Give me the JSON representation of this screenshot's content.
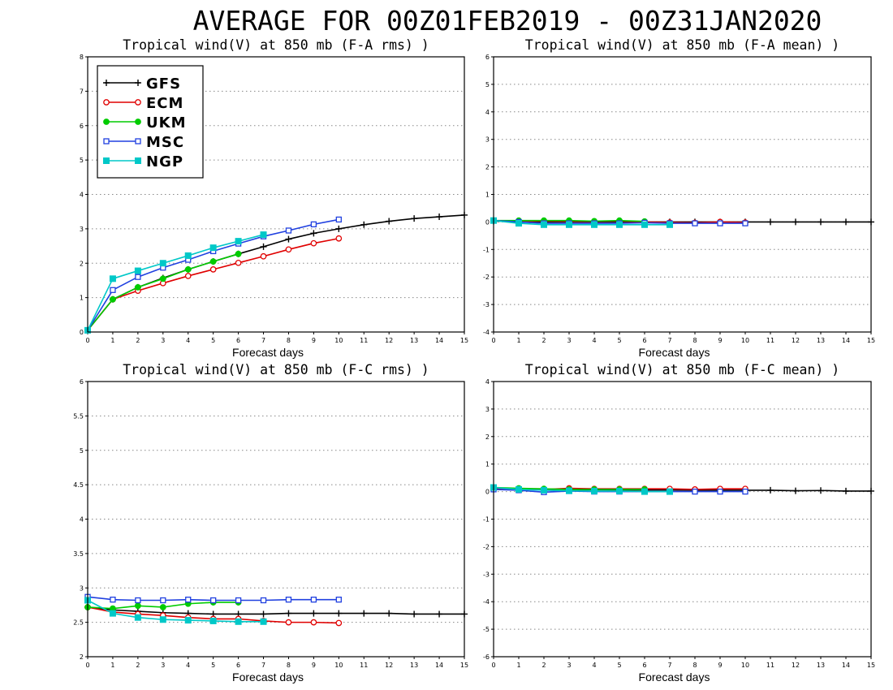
{
  "title": "AVERAGE FOR 00Z01FEB2019 - 00Z31JAN2020",
  "series_style": [
    {
      "name": "GFS",
      "color": "#000000",
      "marker": "plus"
    },
    {
      "name": "ECM",
      "color": "#e00000",
      "marker": "open-circle"
    },
    {
      "name": "UKM",
      "color": "#00cc00",
      "marker": "filled-circle"
    },
    {
      "name": "MSC",
      "color": "#2040e0",
      "marker": "open-square"
    },
    {
      "name": "NGP",
      "color": "#00c8c8",
      "marker": "filled-square"
    }
  ],
  "chart_data": [
    {
      "type": "line",
      "title": "Tropical wind(V) at 850 mb (F-A rms) )",
      "xlabel": "Forecast days",
      "ylabel": "",
      "xlim": [
        0,
        15
      ],
      "ylim": [
        0,
        8
      ],
      "xticks": [
        0,
        1,
        2,
        3,
        4,
        5,
        6,
        7,
        8,
        9,
        10,
        11,
        12,
        13,
        14,
        15
      ],
      "yticks": [
        0,
        1,
        2,
        3,
        4,
        5,
        6,
        7,
        8
      ],
      "grid": "horizontal dotted",
      "legend": "top-left",
      "series": [
        {
          "name": "GFS",
          "x": [
            0,
            1,
            2,
            3,
            4,
            5,
            6,
            7,
            8,
            9,
            10,
            11,
            12,
            13,
            14,
            15
          ],
          "values": [
            0.05,
            0.95,
            1.3,
            1.57,
            1.82,
            2.05,
            2.27,
            2.48,
            2.7,
            2.87,
            3.0,
            3.12,
            3.22,
            3.3,
            3.35,
            3.4
          ]
        },
        {
          "name": "ECM",
          "x": [
            0,
            1,
            2,
            3,
            4,
            5,
            6,
            7,
            8,
            9,
            10
          ],
          "values": [
            0.05,
            0.95,
            1.2,
            1.42,
            1.63,
            1.82,
            2.01,
            2.2,
            2.4,
            2.58,
            2.72
          ]
        },
        {
          "name": "UKM",
          "x": [
            0,
            1,
            2,
            3,
            4,
            5,
            6
          ],
          "values": [
            0.05,
            0.95,
            1.3,
            1.55,
            1.82,
            2.05,
            2.27
          ]
        },
        {
          "name": "MSC",
          "x": [
            0,
            1,
            2,
            3,
            4,
            5,
            6,
            7,
            8,
            9,
            10
          ],
          "values": [
            0.05,
            1.22,
            1.6,
            1.87,
            2.1,
            2.35,
            2.57,
            2.78,
            2.95,
            3.13,
            3.27
          ]
        },
        {
          "name": "NGP",
          "x": [
            0,
            1,
            2,
            3,
            4,
            5,
            6,
            7
          ],
          "values": [
            0.05,
            1.55,
            1.78,
            2.0,
            2.22,
            2.45,
            2.64,
            2.83
          ]
        }
      ]
    },
    {
      "type": "line",
      "title": "Tropical wind(V) at 850 mb (F-A mean) )",
      "xlabel": "Forecast days",
      "ylabel": "",
      "xlim": [
        0,
        15
      ],
      "ylim": [
        -4,
        6
      ],
      "xticks": [
        0,
        1,
        2,
        3,
        4,
        5,
        6,
        7,
        8,
        9,
        10,
        11,
        12,
        13,
        14,
        15
      ],
      "yticks": [
        -4,
        -3,
        -2,
        -1,
        0,
        1,
        2,
        3,
        4,
        5,
        6
      ],
      "grid": "horizontal dotted",
      "legend": "none",
      "series": [
        {
          "name": "GFS",
          "x": [
            0,
            1,
            2,
            3,
            4,
            5,
            6,
            7,
            8,
            9,
            10,
            11,
            12,
            13,
            14,
            15
          ],
          "values": [
            0.03,
            0.0,
            0.0,
            0.0,
            0.0,
            0.0,
            0.0,
            0.0,
            0.0,
            0.0,
            0.0,
            0.0,
            0.0,
            0.0,
            0.0,
            0.0
          ]
        },
        {
          "name": "ECM",
          "x": [
            0,
            1,
            2,
            3,
            4,
            5,
            6,
            7,
            8,
            9,
            10
          ],
          "values": [
            0.05,
            0.02,
            0.03,
            0.02,
            0.02,
            0.03,
            0.0,
            -0.02,
            -0.03,
            0.0,
            -0.02
          ]
        },
        {
          "name": "UKM",
          "x": [
            0,
            1,
            2,
            3,
            4,
            5,
            6
          ],
          "values": [
            0.05,
            0.05,
            0.05,
            0.05,
            0.03,
            0.05,
            0.02
          ]
        },
        {
          "name": "MSC",
          "x": [
            0,
            1,
            2,
            3,
            4,
            5,
            6,
            7,
            8,
            9,
            10
          ],
          "values": [
            0.05,
            0.0,
            -0.05,
            -0.05,
            -0.05,
            -0.05,
            -0.03,
            -0.05,
            -0.05,
            -0.05,
            -0.05
          ]
        },
        {
          "name": "NGP",
          "x": [
            0,
            1,
            2,
            3,
            4,
            5,
            6,
            7
          ],
          "values": [
            0.05,
            -0.05,
            -0.1,
            -0.1,
            -0.1,
            -0.1,
            -0.1,
            -0.1
          ]
        }
      ]
    },
    {
      "type": "line",
      "title": "Tropical wind(V) at 850 mb (F-C rms) )",
      "xlabel": "Forecast days",
      "ylabel": "",
      "xlim": [
        0,
        15
      ],
      "ylim": [
        2,
        6
      ],
      "xticks": [
        0,
        1,
        2,
        3,
        4,
        5,
        6,
        7,
        8,
        9,
        10,
        11,
        12,
        13,
        14,
        15
      ],
      "yticks": [
        2,
        2.5,
        3,
        3.5,
        4,
        4.5,
        5,
        5.5,
        6
      ],
      "grid": "horizontal dotted",
      "legend": "none",
      "series": [
        {
          "name": "GFS",
          "x": [
            0,
            1,
            2,
            3,
            4,
            5,
            6,
            7,
            8,
            9,
            10,
            11,
            12,
            13,
            14,
            15
          ],
          "values": [
            2.72,
            2.68,
            2.66,
            2.64,
            2.63,
            2.62,
            2.62,
            2.62,
            2.63,
            2.63,
            2.63,
            2.63,
            2.63,
            2.62,
            2.62,
            2.62
          ]
        },
        {
          "name": "ECM",
          "x": [
            0,
            1,
            2,
            3,
            4,
            5,
            6,
            7,
            8,
            9,
            10
          ],
          "values": [
            2.72,
            2.65,
            2.62,
            2.6,
            2.57,
            2.55,
            2.55,
            2.52,
            2.5,
            2.5,
            2.49
          ]
        },
        {
          "name": "UKM",
          "x": [
            0,
            1,
            2,
            3,
            4,
            5,
            6
          ],
          "values": [
            2.72,
            2.7,
            2.74,
            2.72,
            2.77,
            2.79,
            2.79
          ]
        },
        {
          "name": "MSC",
          "x": [
            0,
            1,
            2,
            3,
            4,
            5,
            6,
            7,
            8,
            9,
            10
          ],
          "values": [
            2.87,
            2.83,
            2.82,
            2.82,
            2.83,
            2.82,
            2.82,
            2.82,
            2.83,
            2.83,
            2.83
          ]
        },
        {
          "name": "NGP",
          "x": [
            0,
            1,
            2,
            3,
            4,
            5,
            6,
            7
          ],
          "values": [
            2.82,
            2.63,
            2.57,
            2.54,
            2.53,
            2.52,
            2.51,
            2.51
          ]
        }
      ]
    },
    {
      "type": "line",
      "title": "Tropical wind(V) at 850 mb (F-C mean) )",
      "xlabel": "Forecast days",
      "ylabel": "",
      "xlim": [
        0,
        15
      ],
      "ylim": [
        -6,
        4
      ],
      "xticks": [
        0,
        1,
        2,
        3,
        4,
        5,
        6,
        7,
        8,
        9,
        10,
        11,
        12,
        13,
        14,
        15
      ],
      "yticks": [
        -6,
        -5,
        -4,
        -3,
        -2,
        -1,
        0,
        1,
        2,
        3,
        4
      ],
      "grid": "horizontal dotted",
      "legend": "none",
      "series": [
        {
          "name": "GFS",
          "x": [
            0,
            1,
            2,
            3,
            4,
            5,
            6,
            7,
            8,
            9,
            10,
            11,
            12,
            13,
            14,
            15
          ],
          "values": [
            0.1,
            0.08,
            0.07,
            0.07,
            0.07,
            0.06,
            0.06,
            0.06,
            0.05,
            0.05,
            0.05,
            0.05,
            0.03,
            0.04,
            0.02,
            0.02
          ]
        },
        {
          "name": "ECM",
          "x": [
            0,
            1,
            2,
            3,
            4,
            5,
            6,
            7,
            8,
            9,
            10
          ],
          "values": [
            0.1,
            0.1,
            0.08,
            0.12,
            0.1,
            0.1,
            0.1,
            0.1,
            0.08,
            0.1,
            0.1
          ]
        },
        {
          "name": "UKM",
          "x": [
            0,
            1,
            2,
            3,
            4,
            5,
            6
          ],
          "values": [
            0.15,
            0.12,
            0.1,
            0.08,
            0.08,
            0.08,
            0.08
          ]
        },
        {
          "name": "MSC",
          "x": [
            0,
            1,
            2,
            3,
            4,
            5,
            6,
            7,
            8,
            9,
            10
          ],
          "values": [
            0.08,
            0.05,
            -0.02,
            0.02,
            0.0,
            0.0,
            0.0,
            0.0,
            0.0,
            0.0,
            0.0
          ]
        },
        {
          "name": "NGP",
          "x": [
            0,
            1,
            2,
            3,
            4,
            5,
            6,
            7
          ],
          "values": [
            0.15,
            0.08,
            0.05,
            0.03,
            0.02,
            0.02,
            0.0,
            0.0
          ]
        }
      ]
    }
  ]
}
